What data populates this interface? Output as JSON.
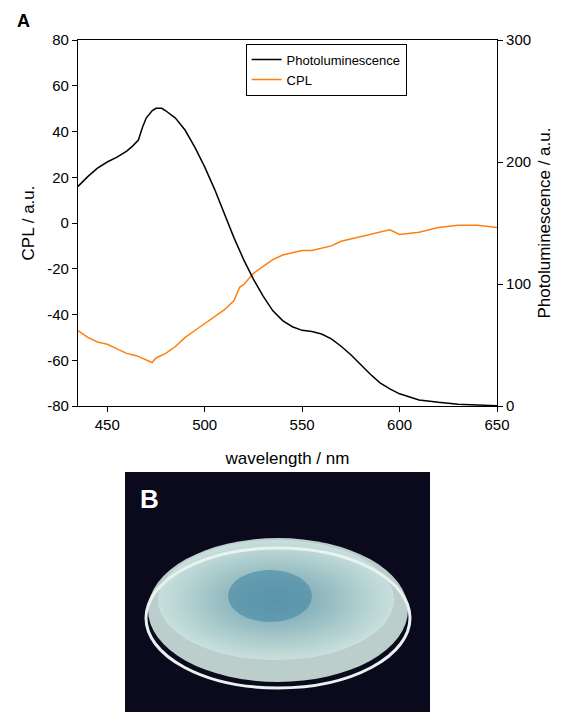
{
  "panel_labels": [
    "A",
    "B"
  ],
  "chart_data": {
    "type": "line",
    "x_label": "wavelength / nm",
    "y_label": "CPL / a.u.",
    "y2_label": "Photoluminescence / a.u.",
    "xlim": [
      435,
      650
    ],
    "xticks": [
      450,
      500,
      550,
      600,
      650
    ],
    "ylim": [
      -80,
      80
    ],
    "yticks": [
      -80,
      -60,
      -40,
      -20,
      0,
      20,
      40,
      60,
      80
    ],
    "y2lim": [
      0,
      300
    ],
    "y2ticks": [
      0,
      100,
      200,
      300
    ],
    "grid": false,
    "legend": "top",
    "series": [
      {
        "name": "Photoluminescence",
        "color": "#000000",
        "axis": "y2",
        "x": [
          435,
          440,
          445,
          450,
          455,
          460,
          463,
          466,
          468,
          470,
          473,
          475,
          478,
          480,
          485,
          490,
          495,
          500,
          505,
          510,
          515,
          520,
          525,
          530,
          535,
          540,
          545,
          550,
          555,
          560,
          565,
          570,
          575,
          580,
          585,
          590,
          595,
          600,
          610,
          620,
          630,
          640,
          650
        ],
        "values": [
          180,
          188,
          195,
          200,
          204,
          209,
          213,
          218,
          228,
          236,
          242,
          244,
          244,
          242,
          236,
          226,
          212,
          196,
          178,
          158,
          138,
          120,
          104,
          90,
          78,
          70,
          65,
          62,
          61,
          59,
          55,
          49,
          42,
          34,
          26,
          19,
          14,
          10,
          5,
          3,
          1.5,
          0.8,
          0.3
        ]
      },
      {
        "name": "CPL",
        "color": "#ff7f0e",
        "axis": "y",
        "x": [
          435,
          440,
          445,
          450,
          455,
          460,
          465,
          470,
          473,
          475,
          480,
          485,
          490,
          495,
          500,
          505,
          510,
          515,
          518,
          520,
          525,
          530,
          535,
          540,
          545,
          550,
          555,
          560,
          565,
          570,
          575,
          580,
          585,
          590,
          595,
          600,
          610,
          620,
          630,
          640,
          650
        ],
        "values": [
          -47,
          -50,
          -52,
          -53,
          -55,
          -57,
          -58,
          -60,
          -61,
          -59,
          -57,
          -54,
          -50,
          -47,
          -44,
          -41,
          -38,
          -34,
          -28,
          -27,
          -22,
          -19,
          -16,
          -14,
          -13,
          -12,
          -12,
          -11,
          -10,
          -8,
          -7,
          -6,
          -5,
          -4,
          -3,
          -5,
          -4,
          -2,
          -1,
          -1,
          -2
        ]
      }
    ]
  }
}
